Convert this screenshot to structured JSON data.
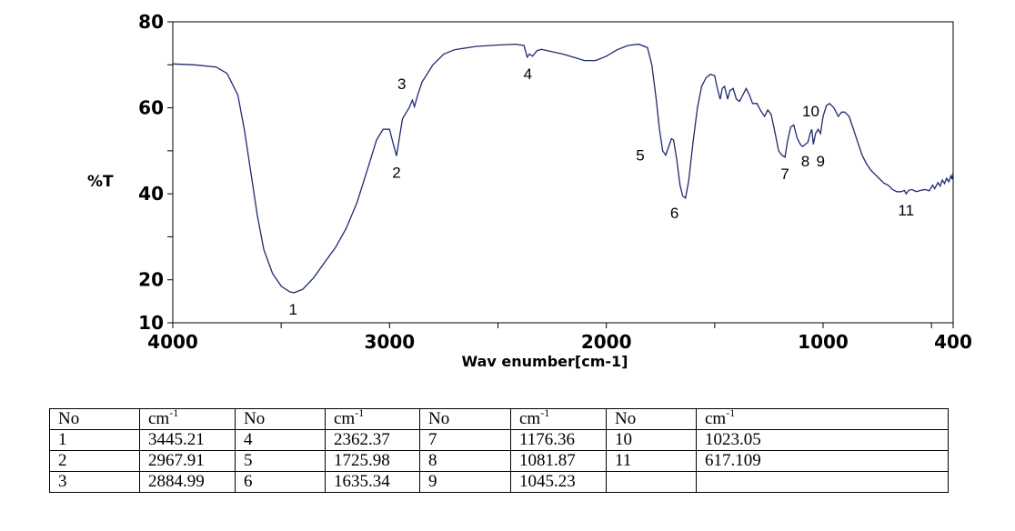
{
  "chart_data": {
    "type": "line",
    "xlabel": "Wav enumber[cm-1]",
    "ylabel": "%T",
    "xlim": [
      4000,
      400
    ],
    "ylim": [
      10,
      80
    ],
    "x_ticks": [
      "4000",
      "3000",
      "2000",
      "1000",
      "400"
    ],
    "y_ticks": [
      "10",
      "20",
      "40",
      "60",
      "80"
    ],
    "grid": false,
    "color": "#1f2a6e",
    "series": [
      {
        "points": [
          [
            4000,
            70.2
          ],
          [
            3900,
            70.0
          ],
          [
            3800,
            69.5
          ],
          [
            3750,
            68.0
          ],
          [
            3700,
            63.0
          ],
          [
            3670,
            55.0
          ],
          [
            3640,
            45.0
          ],
          [
            3610,
            35.0
          ],
          [
            3580,
            27.0
          ],
          [
            3540,
            21.5
          ],
          [
            3500,
            18.5
          ],
          [
            3460,
            17.2
          ],
          [
            3440,
            17.0
          ],
          [
            3400,
            17.8
          ],
          [
            3350,
            20.5
          ],
          [
            3300,
            24.0
          ],
          [
            3250,
            27.5
          ],
          [
            3200,
            32.0
          ],
          [
            3150,
            38.0
          ],
          [
            3100,
            46.0
          ],
          [
            3060,
            52.5
          ],
          [
            3030,
            55.0
          ],
          [
            3000,
            55.0
          ],
          [
            2985,
            52.0
          ],
          [
            2968,
            48.8
          ],
          [
            2955,
            53.0
          ],
          [
            2940,
            57.5
          ],
          [
            2910,
            60.0
          ],
          [
            2895,
            61.8
          ],
          [
            2885,
            60.3
          ],
          [
            2870,
            63.0
          ],
          [
            2850,
            66.0
          ],
          [
            2800,
            70.0
          ],
          [
            2750,
            72.5
          ],
          [
            2700,
            73.5
          ],
          [
            2600,
            74.3
          ],
          [
            2500,
            74.6
          ],
          [
            2420,
            74.8
          ],
          [
            2380,
            74.5
          ],
          [
            2365,
            71.8
          ],
          [
            2355,
            72.5
          ],
          [
            2340,
            72.0
          ],
          [
            2320,
            73.3
          ],
          [
            2300,
            73.6
          ],
          [
            2200,
            72.5
          ],
          [
            2100,
            71.0
          ],
          [
            2050,
            71.0
          ],
          [
            2000,
            72.0
          ],
          [
            1950,
            73.5
          ],
          [
            1900,
            74.5
          ],
          [
            1850,
            74.8
          ],
          [
            1810,
            74.0
          ],
          [
            1790,
            70.0
          ],
          [
            1770,
            62.0
          ],
          [
            1755,
            55.0
          ],
          [
            1740,
            50.0
          ],
          [
            1726,
            49.0
          ],
          [
            1712,
            51.0
          ],
          [
            1700,
            52.8
          ],
          [
            1690,
            52.5
          ],
          [
            1675,
            48.0
          ],
          [
            1660,
            42.0
          ],
          [
            1648,
            39.5
          ],
          [
            1635,
            39.0
          ],
          [
            1620,
            43.0
          ],
          [
            1600,
            52.0
          ],
          [
            1580,
            60.0
          ],
          [
            1560,
            65.0
          ],
          [
            1540,
            67.0
          ],
          [
            1520,
            67.8
          ],
          [
            1500,
            67.5
          ],
          [
            1490,
            65.0
          ],
          [
            1475,
            62.0
          ],
          [
            1465,
            64.5
          ],
          [
            1455,
            65.0
          ],
          [
            1440,
            62.0
          ],
          [
            1430,
            64.0
          ],
          [
            1415,
            64.5
          ],
          [
            1400,
            62.0
          ],
          [
            1385,
            61.5
          ],
          [
            1370,
            63.0
          ],
          [
            1355,
            64.5
          ],
          [
            1340,
            63.0
          ],
          [
            1325,
            61.0
          ],
          [
            1305,
            61.0
          ],
          [
            1290,
            59.5
          ],
          [
            1270,
            58.0
          ],
          [
            1255,
            59.5
          ],
          [
            1240,
            58.5
          ],
          [
            1225,
            55.0
          ],
          [
            1205,
            50.0
          ],
          [
            1190,
            49.0
          ],
          [
            1176,
            48.5
          ],
          [
            1165,
            52.0
          ],
          [
            1150,
            55.5
          ],
          [
            1135,
            56.0
          ],
          [
            1120,
            53.0
          ],
          [
            1105,
            51.5
          ],
          [
            1095,
            51.0
          ],
          [
            1082,
            51.5
          ],
          [
            1070,
            52.0
          ],
          [
            1060,
            54.0
          ],
          [
            1052,
            55.0
          ],
          [
            1045,
            51.5
          ],
          [
            1035,
            54.0
          ],
          [
            1023,
            55.0
          ],
          [
            1012,
            54.0
          ],
          [
            1000,
            58.0
          ],
          [
            985,
            60.5
          ],
          [
            970,
            61.0
          ],
          [
            950,
            60.0
          ],
          [
            930,
            58.0
          ],
          [
            915,
            59.0
          ],
          [
            900,
            59.0
          ],
          [
            880,
            58.0
          ],
          [
            860,
            55.0
          ],
          [
            840,
            52.0
          ],
          [
            820,
            49.0
          ],
          [
            800,
            47.0
          ],
          [
            780,
            45.5
          ],
          [
            760,
            44.5
          ],
          [
            740,
            43.5
          ],
          [
            720,
            42.5
          ],
          [
            700,
            42.0
          ],
          [
            680,
            41.0
          ],
          [
            660,
            40.5
          ],
          [
            640,
            40.5
          ],
          [
            625,
            40.8
          ],
          [
            617,
            40.0
          ],
          [
            605,
            40.8
          ],
          [
            590,
            41.0
          ],
          [
            570,
            40.5
          ],
          [
            550,
            40.8
          ],
          [
            530,
            41.0
          ],
          [
            510,
            40.7
          ],
          [
            495,
            42.0
          ],
          [
            485,
            41.2
          ],
          [
            470,
            42.6
          ],
          [
            460,
            41.8
          ],
          [
            450,
            43.2
          ],
          [
            440,
            42.4
          ],
          [
            430,
            43.6
          ],
          [
            420,
            42.8
          ],
          [
            410,
            44.2
          ],
          [
            405,
            43.4
          ],
          [
            400,
            45.0
          ]
        ]
      }
    ],
    "annotations": [
      {
        "text": "1",
        "x": 3445.21,
        "y": 17.0,
        "pos": "below"
      },
      {
        "text": "2",
        "x": 2967.91,
        "y": 48.8,
        "pos": "below"
      },
      {
        "text": "3",
        "x": 2884.99,
        "y": 61.8,
        "pos": "above-left"
      },
      {
        "text": "4",
        "x": 2362.37,
        "y": 71.8,
        "pos": "below"
      },
      {
        "text": "5",
        "x": 1725.98,
        "y": 49.0,
        "pos": "left"
      },
      {
        "text": "6",
        "x": 1635.34,
        "y": 39.0,
        "pos": "below-left"
      },
      {
        "text": "7",
        "x": 1176.36,
        "y": 48.5,
        "pos": "below"
      },
      {
        "text": "8",
        "x": 1081.87,
        "y": 51.5,
        "pos": "below"
      },
      {
        "text": "9",
        "x": 1045.23,
        "y": 51.5,
        "pos": "below-right"
      },
      {
        "text": "10",
        "x": 1023.05,
        "y": 55.0,
        "pos": "above"
      },
      {
        "text": "11",
        "x": 617.109,
        "y": 40.0,
        "pos": "below"
      }
    ]
  },
  "peak_table": {
    "headers": {
      "no": "No",
      "cm": "cm",
      "cm_exp": "-1"
    },
    "rows": [
      [
        "1",
        "3445.21",
        "4",
        "2362.37",
        "7",
        "1176.36",
        "10",
        "1023.05"
      ],
      [
        "2",
        "2967.91",
        "5",
        "1725.98",
        "8",
        "1081.87",
        "11",
        "617.109"
      ],
      [
        "3",
        "2884.99",
        "6",
        "1635.34",
        "9",
        "1045.23",
        "",
        ""
      ]
    ]
  }
}
